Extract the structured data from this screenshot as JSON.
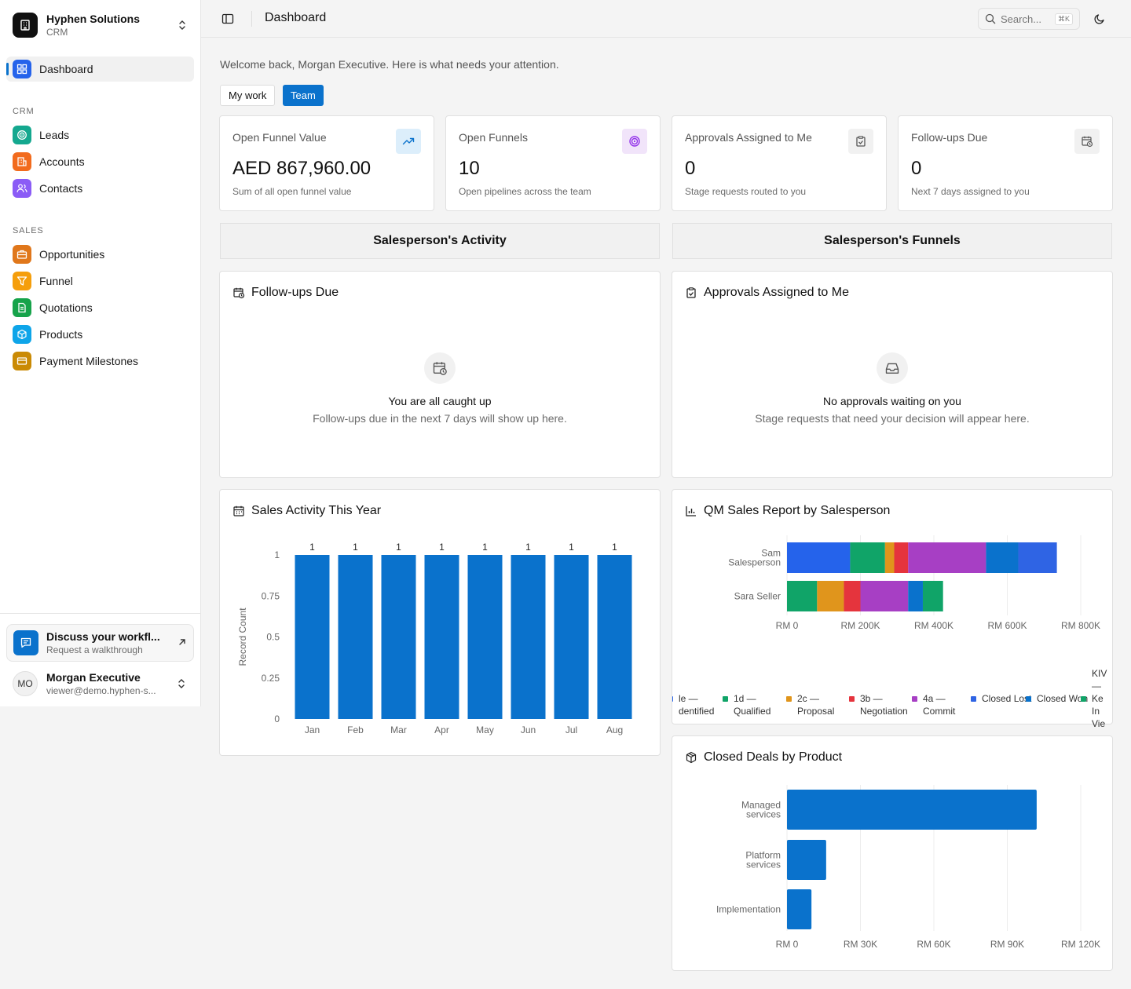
{
  "org": {
    "name": "Hyphen Solutions",
    "sub": "CRM"
  },
  "sidebar": {
    "dashboard": "Dashboard",
    "crm_label": "CRM",
    "crm_items": [
      {
        "label": "Leads",
        "icon": "target-icon",
        "color": "#14a88f"
      },
      {
        "label": "Accounts",
        "icon": "building-icon",
        "color": "#f26b1d"
      },
      {
        "label": "Contacts",
        "icon": "users-icon",
        "color": "#8b5cf6"
      }
    ],
    "sales_label": "SALES",
    "sales_items": [
      {
        "label": "Opportunities",
        "icon": "briefcase-icon",
        "color": "#e0771b"
      },
      {
        "label": "Funnel",
        "icon": "funnel-icon",
        "color": "#f59e0b"
      },
      {
        "label": "Quotations",
        "icon": "document-icon",
        "color": "#16a34a"
      },
      {
        "label": "Products",
        "icon": "box-icon",
        "color": "#0ea5e9"
      },
      {
        "label": "Payment Milestones",
        "icon": "card-icon",
        "color": "#ca8a04"
      }
    ],
    "promo": {
      "title": "Discuss your workflow",
      "title_display": "Discuss your workfl...",
      "sub": "Request a walkthrough"
    },
    "user": {
      "initials": "MO",
      "name": "Morgan Executive",
      "email": "viewer@demo.hyphen-s..."
    }
  },
  "topbar": {
    "title": "Dashboard",
    "search_placeholder": "Search...",
    "search_kbd": "⌘K"
  },
  "main": {
    "welcome": "Welcome back, Morgan Executive. Here is what needs your attention.",
    "toggle": {
      "my_work": "My work",
      "team": "Team",
      "selected": "Team"
    },
    "kpis": [
      {
        "label": "Open Funnel Value",
        "value": "AED 867,960.00",
        "sub": "Sum of all open funnel value",
        "icon": "trending-up-icon"
      },
      {
        "label": "Open Funnels",
        "value": "10",
        "sub": "Open pipelines across the team",
        "icon": "target-icon"
      },
      {
        "label": "Approvals Assigned to Me",
        "value": "0",
        "sub": "Stage requests routed to you",
        "icon": "clipboard-check-icon"
      },
      {
        "label": "Follow-ups Due",
        "value": "0",
        "sub": "Next 7 days assigned to you",
        "icon": "calendar-clock-icon"
      }
    ],
    "tabs": {
      "activity": "Salesperson's Activity",
      "funnels": "Salesperson's Funnels"
    },
    "followups": {
      "title": "Follow-ups Due",
      "empty_title": "You are all caught up",
      "empty_sub": "Follow-ups due in the next 7 days will show up here."
    },
    "approvals": {
      "title": "Approvals Assigned to Me",
      "empty_title": "No approvals waiting on you",
      "empty_sub": "Stage requests that need your decision will appear here."
    },
    "sales_activity_title": "Sales Activity This Year",
    "qm_title": "QM Sales Report by Salesperson",
    "closed_title": "Closed Deals by Product"
  },
  "chart_data": [
    {
      "type": "bar",
      "title": "Sales Activity This Year",
      "categories": [
        "Jan",
        "Feb",
        "Mar",
        "Apr",
        "May",
        "Jun",
        "Jul",
        "Aug"
      ],
      "values": [
        1,
        1,
        1,
        1,
        1,
        1,
        1,
        1
      ],
      "ylabel": "Record Count",
      "ylim": [
        0,
        1
      ],
      "yticks": [
        "0",
        "0.25",
        "0.5",
        "0.75",
        "1"
      ],
      "color": "#0a72cc"
    },
    {
      "type": "bar",
      "orientation": "horizontal",
      "stacked": true,
      "title": "QM Sales Report by Salesperson",
      "categories": [
        "Sam Salesperson",
        "Sara Seller"
      ],
      "xlim": [
        0,
        800000
      ],
      "xticks": [
        "RM 0",
        "RM 200K",
        "RM 400K",
        "RM 600K",
        "RM 800K"
      ],
      "segment_values": [
        [
          {
            "stage": "1a — Identified",
            "value": 172000,
            "color": "#2563eb"
          },
          {
            "stage": "1d — Qualified",
            "value": 95000,
            "color": "#10a468"
          },
          {
            "stage": "2c — Proposal",
            "value": 25000,
            "color": "#e0951c"
          },
          {
            "stage": "3b — Negotiation",
            "value": 38000,
            "color": "#e5343d"
          },
          {
            "stage": "4a — Commit",
            "value": 212000,
            "color": "#a73fc4"
          },
          {
            "stage": "Closed Won",
            "value": 88000,
            "color": "#0a72cc"
          },
          {
            "stage": "Closed Lost",
            "value": 105000,
            "color": "#2f64e4"
          }
        ],
        [
          {
            "stage": "1d — Qualified",
            "value": 82000,
            "color": "#10a468"
          },
          {
            "stage": "2c — Proposal",
            "value": 73000,
            "color": "#e0951c"
          },
          {
            "stage": "3b — Negotiation",
            "value": 45000,
            "color": "#e5343d"
          },
          {
            "stage": "4a — Commit",
            "value": 130000,
            "color": "#a73fc4"
          },
          {
            "stage": "Closed Won",
            "value": 40000,
            "color": "#0a72cc"
          },
          {
            "stage": "KIV",
            "value": 55000,
            "color": "#10a468"
          }
        ]
      ],
      "legend": [
        {
          "label": "le — dentified",
          "color": "#2563eb"
        },
        {
          "label": "1d — Qualified",
          "color": "#10a468"
        },
        {
          "label": "2c — Proposal",
          "color": "#e0951c"
        },
        {
          "label": "3b — Negotiation",
          "color": "#e5343d"
        },
        {
          "label": "4a — Commit",
          "color": "#a73fc4"
        },
        {
          "label": "Closed Lost",
          "color": "#2f64e4"
        },
        {
          "label": "Closed Won",
          "color": "#0a72cc"
        },
        {
          "label": "KIV — Ke In Vie",
          "color": "#10a468"
        }
      ]
    },
    {
      "type": "bar",
      "orientation": "horizontal",
      "title": "Closed Deals by Product",
      "categories": [
        "Managed services",
        "Platform services",
        "Implementation"
      ],
      "values": [
        102000,
        16000,
        10000
      ],
      "xlim": [
        0,
        120000
      ],
      "xticks": [
        "RM 0",
        "RM 30K",
        "RM 60K",
        "RM 90K",
        "RM 120K"
      ],
      "color": "#0a72cc"
    }
  ]
}
